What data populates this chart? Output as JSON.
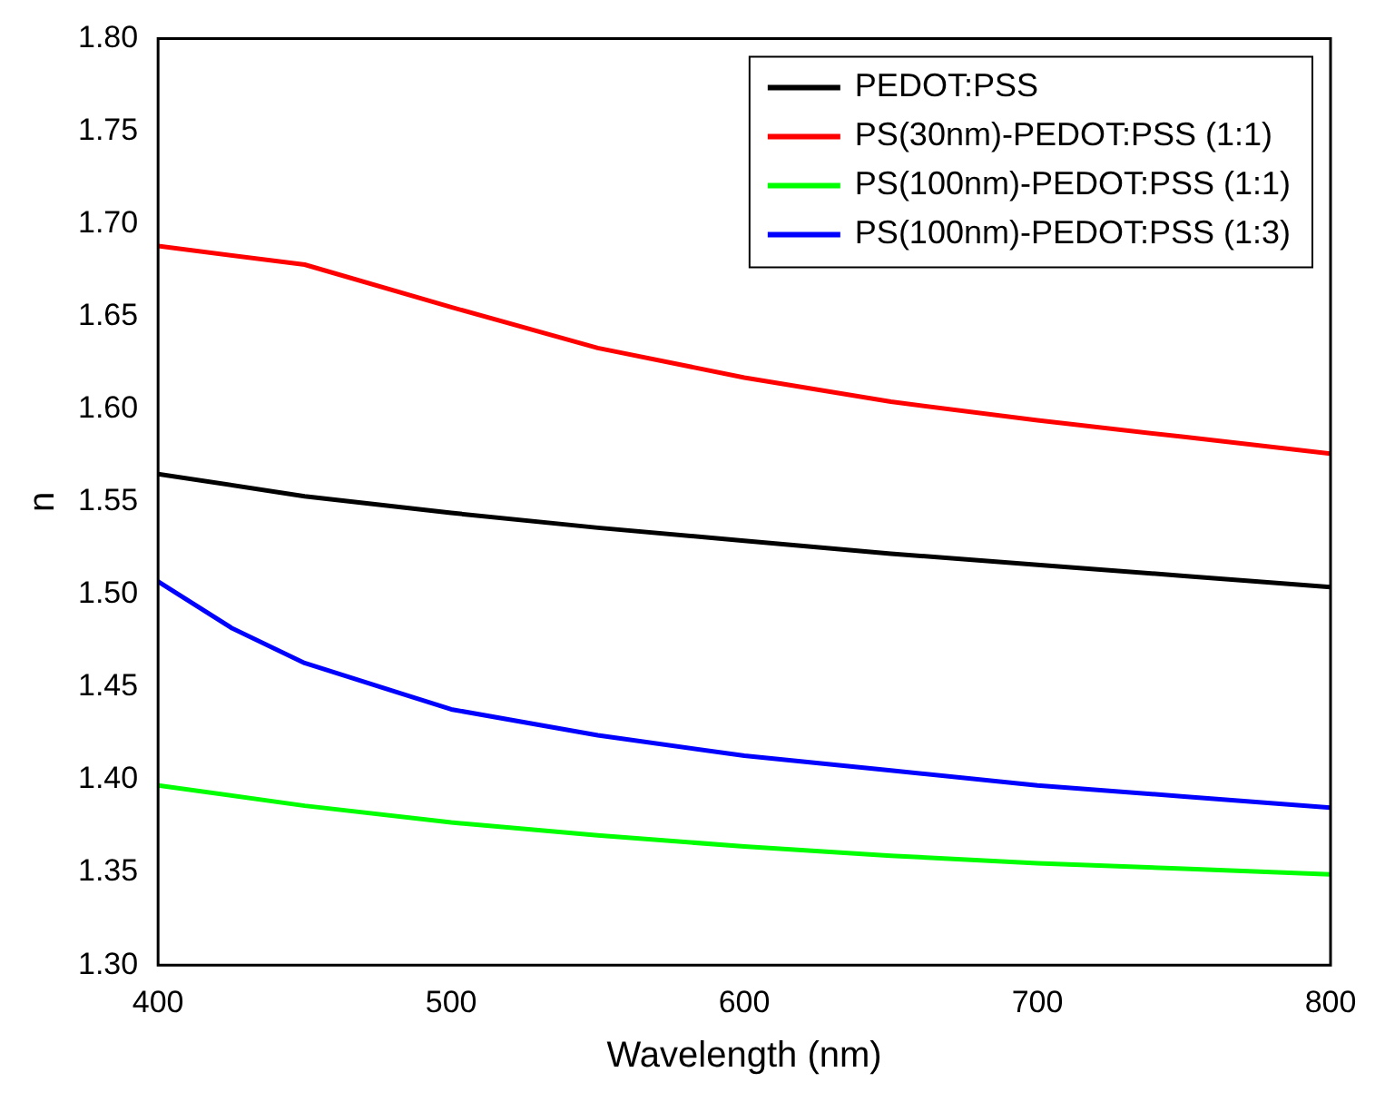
{
  "chart_data": {
    "type": "line",
    "xlabel": "Wavelength (nm)",
    "ylabel": "n",
    "xlim": [
      400,
      800
    ],
    "xticks": [
      400,
      500,
      600,
      700,
      800
    ],
    "ylim": [
      1.3,
      1.8
    ],
    "yticks": [
      {
        "value": 1.3,
        "label": "1.30"
      },
      {
        "value": 1.35,
        "label": "1.35"
      },
      {
        "value": 1.4,
        "label": "1.40"
      },
      {
        "value": 1.45,
        "label": "1.45"
      },
      {
        "value": 1.5,
        "label": "1.50"
      },
      {
        "value": 1.55,
        "label": "1.55"
      },
      {
        "value": 1.6,
        "label": "1.60"
      },
      {
        "value": 1.65,
        "label": "1.65"
      },
      {
        "value": 1.7,
        "label": "1.70"
      },
      {
        "value": 1.75,
        "label": "1.75"
      },
      {
        "value": 1.8,
        "label": "1.80"
      }
    ],
    "grid": false,
    "legend": "top right",
    "marker": "none",
    "line_style": "solid",
    "series": [
      {
        "name": "PEDOT:PSS",
        "color": "#000000",
        "x": [
          400,
          450,
          500,
          550,
          600,
          650,
          700,
          750,
          800
        ],
        "values": [
          1.565,
          1.553,
          1.544,
          1.536,
          1.529,
          1.522,
          1.516,
          1.51,
          1.504
        ]
      },
      {
        "name": "PS(30nm)-PEDOT:PSS (1:1)",
        "color": "#ff0000",
        "x": [
          400,
          450,
          500,
          550,
          600,
          650,
          700,
          750,
          800
        ],
        "values": [
          1.688,
          1.678,
          1.655,
          1.633,
          1.617,
          1.604,
          1.594,
          1.585,
          1.576
        ]
      },
      {
        "name": "PS(100nm)-PEDOT:PSS (1:1)",
        "color": "#00ff00",
        "x": [
          400,
          450,
          500,
          550,
          600,
          650,
          700,
          750,
          800
        ],
        "values": [
          1.397,
          1.386,
          1.377,
          1.37,
          1.364,
          1.359,
          1.355,
          1.352,
          1.349
        ]
      },
      {
        "name": "PS(100nm)-PEDOT:PSS (1:3)",
        "color": "#0000ff",
        "x": [
          400,
          425,
          450,
          500,
          550,
          600,
          650,
          700,
          750,
          800
        ],
        "values": [
          1.507,
          1.482,
          1.463,
          1.438,
          1.424,
          1.413,
          1.405,
          1.397,
          1.391,
          1.385
        ]
      }
    ]
  }
}
